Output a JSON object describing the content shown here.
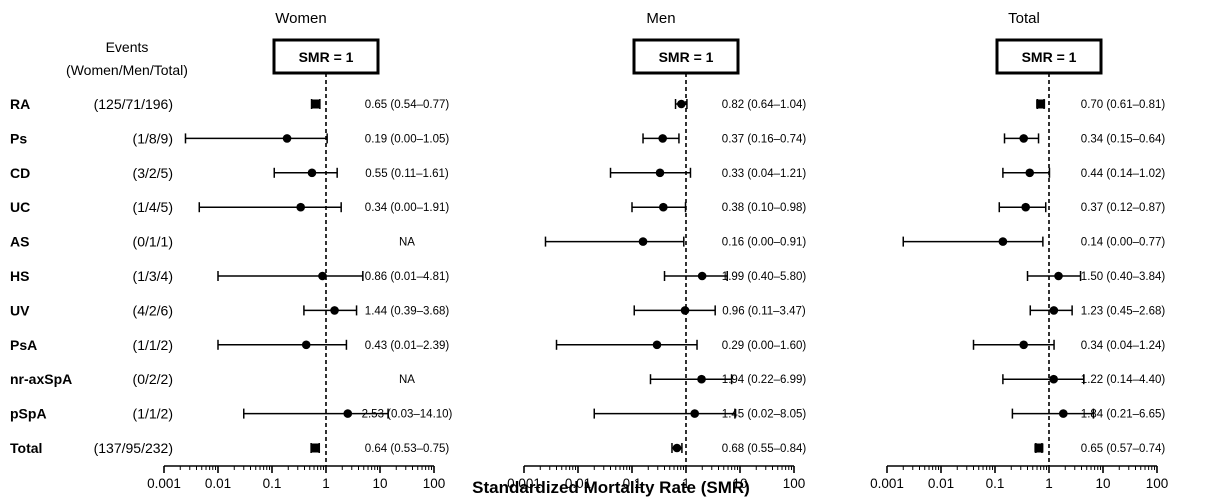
{
  "chart_data": {
    "type": "forest",
    "scale": "log",
    "xlim": [
      0.001,
      100
    ],
    "x_ticks": [
      "0.001",
      "0.01",
      "0.1",
      "1",
      "10",
      "100"
    ],
    "xlabel": "Standardized Mortality Rate (SMR)",
    "reference_line": {
      "value": 1,
      "label": "SMR = 1"
    },
    "events_header": [
      "Events",
      "(Women/Men/Total)"
    ],
    "rows": [
      {
        "label": "RA",
        "events": "(125/71/196)"
      },
      {
        "label": "Ps",
        "events": "(1/8/9)"
      },
      {
        "label": "CD",
        "events": "(3/2/5)"
      },
      {
        "label": "UC",
        "events": "(1/4/5)"
      },
      {
        "label": "AS",
        "events": "(0/1/1)"
      },
      {
        "label": "HS",
        "events": "(1/3/4)"
      },
      {
        "label": "UV",
        "events": "(4/2/6)"
      },
      {
        "label": "PsA",
        "events": "(1/1/2)"
      },
      {
        "label": "nr-axSpA",
        "events": "(0/2/2)"
      },
      {
        "label": "pSpA",
        "events": "(1/1/2)"
      },
      {
        "label": "Total",
        "events": "(137/95/232)"
      }
    ],
    "panels": [
      {
        "title": "Women",
        "estimates": [
          {
            "smr": 0.65,
            "lo": 0.54,
            "hi": 0.77,
            "text": "0.65 (0.54–0.77)",
            "marker": "square"
          },
          {
            "smr": 0.19,
            "lo": 0.0025,
            "hi": 1.05,
            "text": "0.19 (0.00–1.05)",
            "marker": "circle"
          },
          {
            "smr": 0.55,
            "lo": 0.11,
            "hi": 1.61,
            "text": "0.55 (0.11–1.61)",
            "marker": "circle"
          },
          {
            "smr": 0.34,
            "lo": 0.0045,
            "hi": 1.91,
            "text": "0.34 (0.00–1.91)",
            "marker": "circle"
          },
          {
            "smr": null,
            "lo": null,
            "hi": null,
            "text": "NA",
            "marker": "none"
          },
          {
            "smr": 0.86,
            "lo": 0.01,
            "hi": 4.81,
            "text": "0.86 (0.01–4.81)",
            "marker": "circle"
          },
          {
            "smr": 1.44,
            "lo": 0.39,
            "hi": 3.68,
            "text": "1.44 (0.39–3.68)",
            "marker": "circle"
          },
          {
            "smr": 0.43,
            "lo": 0.01,
            "hi": 2.39,
            "text": "0.43 (0.01–2.39)",
            "marker": "circle"
          },
          {
            "smr": null,
            "lo": null,
            "hi": null,
            "text": "NA",
            "marker": "none"
          },
          {
            "smr": 2.53,
            "lo": 0.03,
            "hi": 14.1,
            "text": "2.53 (0.03–14.10)",
            "marker": "circle"
          },
          {
            "smr": 0.64,
            "lo": 0.53,
            "hi": 0.75,
            "text": "0.64 (0.53–0.75)",
            "marker": "square"
          }
        ]
      },
      {
        "title": "Men",
        "estimates": [
          {
            "smr": 0.82,
            "lo": 0.64,
            "hi": 1.04,
            "text": "0.82 (0.64–1.04)",
            "marker": "circle"
          },
          {
            "smr": 0.37,
            "lo": 0.16,
            "hi": 0.74,
            "text": "0.37 (0.16–0.74)",
            "marker": "circle"
          },
          {
            "smr": 0.33,
            "lo": 0.04,
            "hi": 1.21,
            "text": "0.33 (0.04–1.21)",
            "marker": "circle"
          },
          {
            "smr": 0.38,
            "lo": 0.1,
            "hi": 0.98,
            "text": "0.38 (0.10–0.98)",
            "marker": "circle"
          },
          {
            "smr": 0.16,
            "lo": 0.0025,
            "hi": 0.91,
            "text": "0.16 (0.00–0.91)",
            "marker": "circle"
          },
          {
            "smr": 1.99,
            "lo": 0.4,
            "hi": 5.8,
            "text": "1.99 (0.40–5.80)",
            "marker": "circle"
          },
          {
            "smr": 0.96,
            "lo": 0.11,
            "hi": 3.47,
            "text": "0.96 (0.11–3.47)",
            "marker": "circle"
          },
          {
            "smr": 0.29,
            "lo": 0.004,
            "hi": 1.6,
            "text": "0.29 (0.00–1.60)",
            "marker": "circle"
          },
          {
            "smr": 1.94,
            "lo": 0.22,
            "hi": 6.99,
            "text": "1.94 (0.22–6.99)",
            "marker": "circle"
          },
          {
            "smr": 1.45,
            "lo": 0.02,
            "hi": 8.05,
            "text": "1.45 (0.02–8.05)",
            "marker": "circle"
          },
          {
            "smr": 0.68,
            "lo": 0.55,
            "hi": 0.84,
            "text": "0.68 (0.55–0.84)",
            "marker": "circle"
          }
        ]
      },
      {
        "title": "Total",
        "estimates": [
          {
            "smr": 0.7,
            "lo": 0.61,
            "hi": 0.81,
            "text": "0.70 (0.61–0.81)",
            "marker": "square"
          },
          {
            "smr": 0.34,
            "lo": 0.15,
            "hi": 0.64,
            "text": "0.34 (0.15–0.64)",
            "marker": "circle"
          },
          {
            "smr": 0.44,
            "lo": 0.14,
            "hi": 1.02,
            "text": "0.44 (0.14–1.02)",
            "marker": "circle"
          },
          {
            "smr": 0.37,
            "lo": 0.12,
            "hi": 0.87,
            "text": "0.37 (0.12–0.87)",
            "marker": "circle"
          },
          {
            "smr": 0.14,
            "lo": 0.002,
            "hi": 0.77,
            "text": "0.14 (0.00–0.77)",
            "marker": "circle"
          },
          {
            "smr": 1.5,
            "lo": 0.4,
            "hi": 3.84,
            "text": "1.50 (0.40–3.84)",
            "marker": "circle"
          },
          {
            "smr": 1.23,
            "lo": 0.45,
            "hi": 2.68,
            "text": "1.23 (0.45–2.68)",
            "marker": "circle"
          },
          {
            "smr": 0.34,
            "lo": 0.04,
            "hi": 1.24,
            "text": "0.34 (0.04–1.24)",
            "marker": "circle"
          },
          {
            "smr": 1.22,
            "lo": 0.14,
            "hi": 4.4,
            "text": "1.22 (0.14–4.40)",
            "marker": "circle"
          },
          {
            "smr": 1.84,
            "lo": 0.21,
            "hi": 6.65,
            "text": "1.84 (0.21–6.65)",
            "marker": "circle"
          },
          {
            "smr": 0.65,
            "lo": 0.57,
            "hi": 0.74,
            "text": "0.65 (0.57–0.74)",
            "marker": "square"
          }
        ]
      }
    ]
  }
}
